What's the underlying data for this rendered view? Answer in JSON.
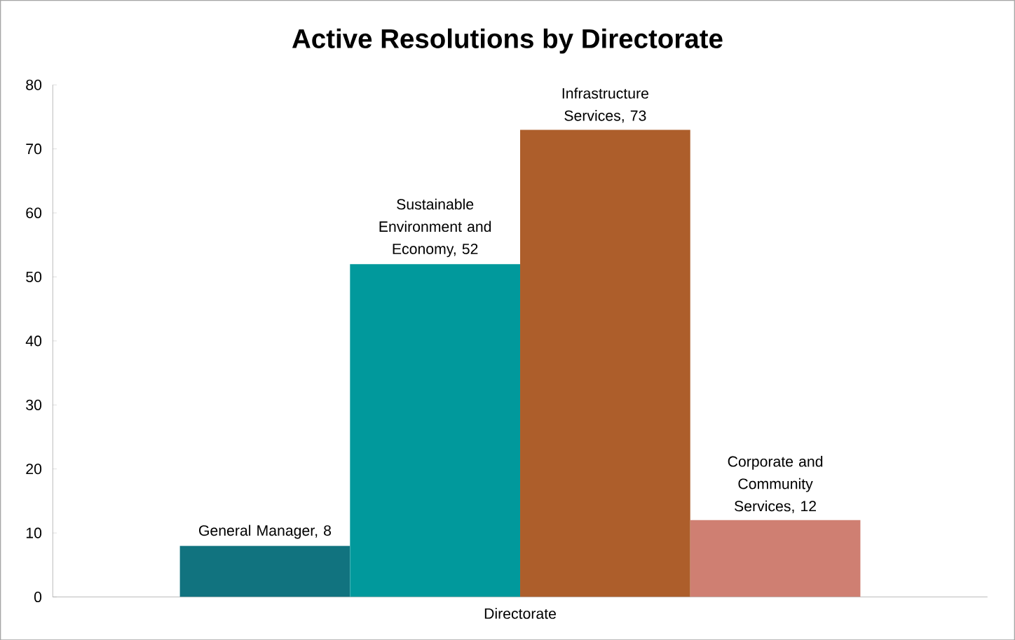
{
  "chart_data": {
    "type": "bar",
    "title": "Active Resolutions by Directorate",
    "categories": [
      "Directorate"
    ],
    "series": [
      {
        "color": "#11737f",
        "values": [
          8
        ],
        "value_labels": [
          "General Manager, 8"
        ]
      },
      {
        "color": "#01999c",
        "values": [
          52
        ],
        "value_labels": [
          "Sustainable Environment and Economy, 52"
        ]
      },
      {
        "color": "#ad5e2b",
        "values": [
          73
        ],
        "value_labels": [
          "Infrastructure Services, 73"
        ]
      },
      {
        "color": "#cf7f72",
        "values": [
          12
        ],
        "value_labels": [
          "Corporate and Community Services, 12"
        ]
      }
    ],
    "ylim": [
      0,
      80
    ],
    "yticks": [
      0,
      10,
      20,
      30,
      40,
      50,
      60,
      70,
      80
    ]
  }
}
